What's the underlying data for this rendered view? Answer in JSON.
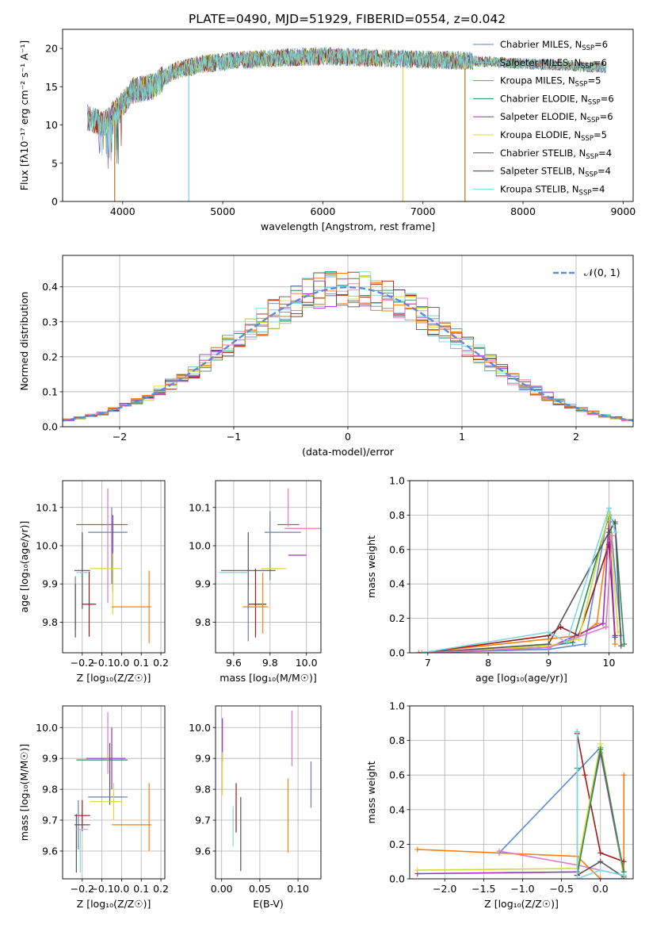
{
  "figure_title": "PLATE=0490, MJD=51929, FIBERID=0554, z=0.042",
  "chart_data": [
    {
      "id": "spectrum",
      "type": "line",
      "xlabel": "wavelength [Angstrom, rest frame]",
      "ylabel": "Flux [fλ10⁻¹⁷ erg cm⁻² s⁻¹ A⁻¹]",
      "xlim": [
        3400,
        9100
      ],
      "ylim": [
        0,
        22.5
      ],
      "xticks": [
        4000,
        5000,
        6000,
        7000,
        8000,
        9000
      ],
      "yticks": [
        0,
        5,
        10,
        15,
        20
      ],
      "grid": false,
      "legend_position": "top-right",
      "legend": [
        {
          "label": "Chabrier MILES, N_SSP=6",
          "text": "Chabrier MILES, N",
          "sub": "SSP",
          "tail": "=6",
          "color": "#6A80A8"
        },
        {
          "label": "Salpeter MILES, N_SSP=6",
          "text": "Salpeter MILES, N",
          "sub": "SSP",
          "tail": "=6",
          "color": "#7ABFCB"
        },
        {
          "label": "Kroupa MILES, N_SSP=5",
          "text": "Kroupa MILES, N",
          "sub": "SSP",
          "tail": "=5",
          "color": "#C97C2B"
        },
        {
          "label": "Chabrier ELODIE, N_SSP=6",
          "text": "Chabrier ELODIE, N",
          "sub": "SSP",
          "tail": "=6",
          "color": "#2E8B57"
        },
        {
          "label": "Salpeter ELODIE, N_SSP=6",
          "text": "Salpeter ELODIE, N",
          "sub": "SSP",
          "tail": "=6",
          "color": "#9B30C0"
        },
        {
          "label": "Kroupa ELODIE, N_SSP=5",
          "text": "Kroupa ELODIE, N",
          "sub": "SSP",
          "tail": "=5",
          "color": "#D4DC3A"
        },
        {
          "label": "Chabrier STELIB, N_SSP=4",
          "text": "Chabrier STELIB, N",
          "sub": "SSP",
          "tail": "=4",
          "color": "#555555"
        },
        {
          "label": "Salpeter STELIB, N_SSP=4",
          "text": "Salpeter STELIB, N",
          "sub": "SSP",
          "tail": "=4",
          "color": "#A01818"
        },
        {
          "label": "Kroupa STELIB, N_SSP=4",
          "text": "Kroupa STELIB, N",
          "sub": "SSP",
          "tail": "=4",
          "color": "#7ED8E0"
        }
      ],
      "continuum": {
        "x": [
          3650,
          3800,
          3950,
          4100,
          4300,
          4500,
          4800,
          5200,
          5600,
          6000,
          6400,
          6800,
          7200,
          7600,
          8000,
          8400,
          8830
        ],
        "y": [
          11,
          10,
          12,
          14.5,
          15,
          17,
          18,
          18.5,
          18.8,
          19,
          18.8,
          18.6,
          18.5,
          18.3,
          18,
          17.8,
          17.5
        ]
      },
      "dropouts": [
        {
          "x": 3920,
          "to": 0,
          "color": "#C97C2B"
        },
        {
          "x": 4660,
          "to": 0,
          "color": "#7ED8E0"
        },
        {
          "x": 6800,
          "to": 0,
          "color": "#D4DC3A"
        },
        {
          "x": 7420,
          "to": 0,
          "color": "#C97C2B"
        }
      ]
    },
    {
      "id": "residuals",
      "type": "line",
      "xlabel": "(data-model)/error",
      "ylabel": "Normed distribution",
      "xlim": [
        -2.5,
        2.5
      ],
      "ylim": [
        0,
        0.49
      ],
      "xticks": [
        -2,
        -1,
        0,
        1,
        2
      ],
      "yticks": [
        0.0,
        0.1,
        0.2,
        0.3,
        0.4
      ],
      "grid": true,
      "legend_position": "top-right",
      "legend": [
        {
          "label": "𝒩(0, 1)",
          "color": "#5B8BD9"
        }
      ],
      "gaussian": {
        "mean": 0,
        "sigma": 1
      }
    },
    {
      "id": "age_vs_Z",
      "type": "scatter",
      "xlabel": "Z [log₁₀(Z/Z☉)]",
      "ylabel": "age  [log₁₀(age/yr)]",
      "xlim": [
        -0.3,
        0.22
      ],
      "ylim": [
        9.72,
        10.17
      ],
      "xticks": [
        -0.2,
        -0.1,
        0.0,
        0.1,
        0.2
      ],
      "yticks": [
        9.8,
        9.9,
        10.0,
        10.1
      ],
      "grid": true,
      "points": [
        {
          "x": -0.1,
          "y": 10.055,
          "xerr": 0.13,
          "yerr": 0.0,
          "color": "#2E8B57"
        },
        {
          "x": -0.07,
          "y": 10.035,
          "xerr": 0.1,
          "yerr": 0.0,
          "color": "#6A80A8"
        },
        {
          "x": -0.05,
          "y": 10.0,
          "xerr": 0.0,
          "yerr": 0.1,
          "color": "#6A80A8"
        },
        {
          "x": -0.07,
          "y": 10.0,
          "xerr": 0.0,
          "yerr": 0.15,
          "color": "#E377C2"
        },
        {
          "x": -0.045,
          "y": 9.98,
          "xerr": 0.0,
          "yerr": 0.1,
          "color": "#9B30C0"
        },
        {
          "x": -0.2,
          "y": 9.935,
          "xerr": 0.04,
          "yerr": 0.1,
          "color": "#555555"
        },
        {
          "x": -0.08,
          "y": 9.94,
          "xerr": 0.08,
          "yerr": 0.0,
          "color": "#D4DC3A"
        },
        {
          "x": -0.2,
          "y": 9.93,
          "xerr": 0.03,
          "yerr": 0.0,
          "color": "#7ED8E0"
        },
        {
          "x": -0.045,
          "y": 9.9,
          "xerr": 0.0,
          "yerr": 0.08,
          "color": "#D4DC3A"
        },
        {
          "x": -0.235,
          "y": 9.85,
          "xerr": 0.0,
          "yerr": 0.07,
          "color": "#6A80A8"
        },
        {
          "x": -0.235,
          "y": 9.83,
          "xerr": 0.0,
          "yerr": 0.07,
          "color": "#555555"
        },
        {
          "x": -0.165,
          "y": 9.847,
          "xerr": 0.035,
          "yerr": 0.085,
          "color": "#A01818"
        },
        {
          "x": 0.05,
          "y": 9.84,
          "xerr": 0.1,
          "yerr": 0.0,
          "color": "#FF7F0E"
        },
        {
          "x": 0.14,
          "y": 9.84,
          "xerr": 0.0,
          "yerr": 0.095,
          "color": "#FF7F0E"
        }
      ]
    },
    {
      "id": "age_vs_mass",
      "type": "scatter",
      "xlabel": "mass [log₁₀(M/M☉)]",
      "ylabel": "",
      "xlim": [
        9.5,
        10.08
      ],
      "ylim": [
        9.72,
        10.17
      ],
      "xticks": [
        9.6,
        9.8,
        10.0
      ],
      "yticks": [
        9.8,
        9.9,
        10.0,
        10.1
      ],
      "grid": true,
      "points": [
        {
          "x": 9.9,
          "y": 10.055,
          "xerr": 0.06,
          "yerr": 0.0,
          "color": "#2E8B57"
        },
        {
          "x": 9.9,
          "y": 10.1,
          "xerr": 0.0,
          "yerr": 0.05,
          "color": "#E377C2"
        },
        {
          "x": 9.98,
          "y": 10.045,
          "xerr": 0.1,
          "yerr": 0.0,
          "color": "#E377C2"
        },
        {
          "x": 9.87,
          "y": 10.035,
          "xerr": 0.1,
          "yerr": 0.0,
          "color": "#6A80A8"
        },
        {
          "x": 9.8,
          "y": 10.0,
          "xerr": 0.0,
          "yerr": 0.09,
          "color": "#6A80A8"
        },
        {
          "x": 9.95,
          "y": 9.975,
          "xerr": 0.05,
          "yerr": 0.0,
          "color": "#9B30C0"
        },
        {
          "x": 9.68,
          "y": 9.935,
          "xerr": 0.15,
          "yerr": 0.1,
          "color": "#555555"
        },
        {
          "x": 9.82,
          "y": 9.94,
          "xerr": 0.07,
          "yerr": 0.0,
          "color": "#D4DC3A"
        },
        {
          "x": 9.6,
          "y": 9.93,
          "xerr": 0.08,
          "yerr": 0.0,
          "color": "#7ED8E0"
        },
        {
          "x": 9.72,
          "y": 9.85,
          "xerr": 0.0,
          "yerr": 0.09,
          "color": "#A01818"
        },
        {
          "x": 9.73,
          "y": 9.847,
          "xerr": 0.05,
          "yerr": 0.0,
          "color": "#A01818"
        },
        {
          "x": 9.72,
          "y": 9.84,
          "xerr": 0.07,
          "yerr": 0.0,
          "color": "#FF7F0E"
        },
        {
          "x": 9.76,
          "y": 9.85,
          "xerr": 0.0,
          "yerr": 0.08,
          "color": "#FF7F0E"
        },
        {
          "x": 9.68,
          "y": 9.82,
          "xerr": 0.0,
          "yerr": 0.07,
          "color": "#6A80A8"
        }
      ]
    },
    {
      "id": "massweight_vs_age",
      "type": "line",
      "xlabel": "age  [log₁₀(age/yr)]",
      "ylabel": "mass weight",
      "xlim": [
        6.7,
        10.4
      ],
      "ylim": [
        0,
        1.0
      ],
      "xticks": [
        7,
        8,
        9,
        10
      ],
      "yticks": [
        0.0,
        0.2,
        0.4,
        0.6,
        0.8,
        1.0
      ],
      "grid": true,
      "series": [
        {
          "color": "#5B8BD9",
          "x": [
            6.85,
            9.0,
            9.6,
            10.0,
            10.2
          ],
          "y": [
            0.0,
            0.02,
            0.05,
            0.84,
            0.1
          ]
        },
        {
          "color": "#FF7F0E",
          "x": [
            6.85,
            9.0,
            9.5,
            9.8,
            10.0,
            10.1
          ],
          "y": [
            0.0,
            0.08,
            0.1,
            0.17,
            0.72,
            0.05
          ]
        },
        {
          "color": "#2E8B57",
          "x": [
            6.9,
            9.0,
            9.4,
            10.0,
            10.1,
            10.25
          ],
          "y": [
            0.0,
            0.04,
            0.06,
            0.8,
            0.75,
            0.05
          ]
        },
        {
          "color": "#A01818",
          "x": [
            6.9,
            9.0,
            9.2,
            9.5,
            10.0,
            10.1
          ],
          "y": [
            0.0,
            0.1,
            0.15,
            0.1,
            0.63,
            0.1
          ]
        },
        {
          "color": "#9B30C0",
          "x": [
            6.9,
            9.0,
            9.9,
            10.0,
            10.1
          ],
          "y": [
            0.0,
            0.03,
            0.17,
            0.76,
            0.09
          ]
        },
        {
          "color": "#D4DC3A",
          "x": [
            6.9,
            9.0,
            9.5,
            10.0,
            10.15
          ],
          "y": [
            0.0,
            0.04,
            0.08,
            0.82,
            0.12
          ]
        },
        {
          "color": "#555555",
          "x": [
            6.9,
            9.0,
            10.0,
            10.1,
            10.2
          ],
          "y": [
            0.0,
            0.05,
            0.7,
            0.76,
            0.04
          ]
        },
        {
          "color": "#E377C2",
          "x": [
            6.9,
            9.0,
            9.95,
            10.05
          ],
          "y": [
            0.0,
            0.03,
            0.15,
            0.68
          ]
        },
        {
          "color": "#7ED8E0",
          "x": [
            6.9,
            9.0,
            9.3,
            10.0,
            10.1
          ],
          "y": [
            0.0,
            0.12,
            0.06,
            0.84,
            0.7
          ]
        }
      ]
    },
    {
      "id": "mass_vs_Z",
      "type": "scatter",
      "xlabel": "Z [log₁₀(Z/Z☉)]",
      "ylabel": "mass [log₁₀(M/M☉)]",
      "xlim": [
        -0.3,
        0.22
      ],
      "ylim": [
        9.51,
        10.07
      ],
      "xticks": [
        -0.2,
        -0.1,
        0.0,
        0.1,
        0.2
      ],
      "yticks": [
        9.6,
        9.7,
        9.8,
        9.9,
        10.0
      ],
      "grid": true,
      "points": [
        {
          "x": -0.1,
          "y": 9.895,
          "xerr": 0.13,
          "yerr": 0.0,
          "color": "#2E8B57"
        },
        {
          "x": -0.05,
          "y": 9.9,
          "xerr": 0.0,
          "yerr": 0.1,
          "color": "#9B30C0"
        },
        {
          "x": -0.08,
          "y": 9.9,
          "xerr": 0.1,
          "yerr": 0.0,
          "color": "#9B30C0"
        },
        {
          "x": -0.07,
          "y": 9.95,
          "xerr": 0.0,
          "yerr": 0.1,
          "color": "#E377C2"
        },
        {
          "x": -0.06,
          "y": 9.85,
          "xerr": 0.0,
          "yerr": 0.1,
          "color": "#555555"
        },
        {
          "x": -0.07,
          "y": 9.775,
          "xerr": 0.1,
          "yerr": 0.0,
          "color": "#6A80A8"
        },
        {
          "x": -0.08,
          "y": 9.76,
          "xerr": 0.08,
          "yerr": 0.0,
          "color": "#D4DC3A"
        },
        {
          "x": -0.04,
          "y": 9.76,
          "xerr": 0.0,
          "yerr": 0.06,
          "color": "#D4DC3A"
        },
        {
          "x": 0.05,
          "y": 9.685,
          "xerr": 0.1,
          "yerr": 0.0,
          "color": "#FF7F0E"
        },
        {
          "x": 0.14,
          "y": 9.71,
          "xerr": 0.0,
          "yerr": 0.11,
          "color": "#FF7F0E"
        },
        {
          "x": -0.2,
          "y": 9.715,
          "xerr": 0.04,
          "yerr": 0.05,
          "color": "#A01818"
        },
        {
          "x": -0.22,
          "y": 9.685,
          "xerr": 0.0,
          "yerr": 0.08,
          "color": "#6A80A8"
        },
        {
          "x": -0.2,
          "y": 9.685,
          "xerr": 0.04,
          "yerr": 0.0,
          "color": "#555555"
        },
        {
          "x": -0.23,
          "y": 9.625,
          "xerr": 0.0,
          "yerr": 0.095,
          "color": "#555555"
        },
        {
          "x": -0.2,
          "y": 9.67,
          "xerr": 0.03,
          "yerr": 0.0,
          "color": "#7ED8E0"
        },
        {
          "x": -0.21,
          "y": 9.6,
          "xerr": 0.0,
          "yerr": 0.07,
          "color": "#7ED8E0"
        }
      ]
    },
    {
      "id": "mass_vs_ebv",
      "type": "scatter",
      "xlabel": "E(B-V)",
      "ylabel": "",
      "xlim": [
        -0.008,
        0.13
      ],
      "ylim": [
        9.51,
        10.07
      ],
      "xticks": [
        0.0,
        0.05,
        0.1
      ],
      "yticks": [
        9.6,
        9.7,
        9.8,
        9.9,
        10.0
      ],
      "grid": true,
      "points": [
        {
          "x": 0.001,
          "y": 9.96,
          "xerr": 0.0,
          "yerr": 0.07,
          "color": "#9B30C0"
        },
        {
          "x": 0.001,
          "y": 9.85,
          "xerr": 0.0,
          "yerr": 0.07,
          "color": "#D4DC3A"
        },
        {
          "x": 0.015,
          "y": 9.68,
          "xerr": 0.0,
          "yerr": 0.065,
          "color": "#7ED8E0"
        },
        {
          "x": 0.019,
          "y": 9.74,
          "xerr": 0.0,
          "yerr": 0.08,
          "color": "#A01818"
        },
        {
          "x": 0.025,
          "y": 9.655,
          "xerr": 0.0,
          "yerr": 0.12,
          "color": "#555555"
        },
        {
          "x": 0.087,
          "y": 9.715,
          "xerr": 0.0,
          "yerr": 0.12,
          "color": "#FF7F0E"
        },
        {
          "x": 0.092,
          "y": 9.965,
          "xerr": 0.0,
          "yerr": 0.09,
          "color": "#E377C2"
        },
        {
          "x": 0.117,
          "y": 9.815,
          "xerr": 0.0,
          "yerr": 0.075,
          "color": "#6A80A8"
        }
      ]
    },
    {
      "id": "massweight_vs_Z",
      "type": "line",
      "xlabel": "Z [log₁₀(Z/Z☉)]",
      "ylabel": "mass weight",
      "xlim": [
        -2.45,
        0.42
      ],
      "ylim": [
        0,
        1.0
      ],
      "xticks": [
        -2.0,
        -1.5,
        -1.0,
        -0.5,
        0.0
      ],
      "yticks": [
        0.0,
        0.2,
        0.4,
        0.6,
        0.8,
        1.0
      ],
      "grid": true,
      "series": [
        {
          "color": "#5B8BD9",
          "x": [
            -1.3,
            0.0
          ],
          "y": [
            0.15,
            0.76
          ]
        },
        {
          "color": "#FF7F0E",
          "x": [
            -2.35,
            -0.3,
            0.0,
            0.3,
            0.3
          ],
          "y": [
            0.17,
            0.13,
            0.0,
            0.0,
            0.6
          ]
        },
        {
          "color": "#E377C2",
          "x": [
            -1.3,
            -0.3,
            0.3
          ],
          "y": [
            0.16,
            0.08,
            0.02
          ]
        },
        {
          "color": "#A01818",
          "x": [
            -0.3,
            -0.2,
            0.0,
            0.3
          ],
          "y": [
            0.84,
            0.6,
            0.15,
            0.1
          ]
        },
        {
          "color": "#9B30C0",
          "x": [
            -2.35,
            -0.3,
            0.0,
            0.3
          ],
          "y": [
            0.03,
            0.04,
            0.73,
            0.02
          ]
        },
        {
          "color": "#D4DC3A",
          "x": [
            -2.35,
            -0.3,
            0.0,
            0.3
          ],
          "y": [
            0.05,
            0.06,
            0.78,
            0.02
          ]
        },
        {
          "color": "#2E8B57",
          "x": [
            -0.3,
            -0.3,
            0.0,
            0.3
          ],
          "y": [
            0.64,
            0.02,
            0.75,
            0.04
          ]
        },
        {
          "color": "#555555",
          "x": [
            -0.3,
            -0.3,
            0.0,
            0.3
          ],
          "y": [
            0.85,
            0.02,
            0.1,
            0.01
          ]
        },
        {
          "color": "#7ED8E0",
          "x": [
            -0.3,
            -0.3,
            0.0,
            0.3
          ],
          "y": [
            0.85,
            0.0,
            0.05,
            0.02
          ]
        }
      ]
    }
  ]
}
